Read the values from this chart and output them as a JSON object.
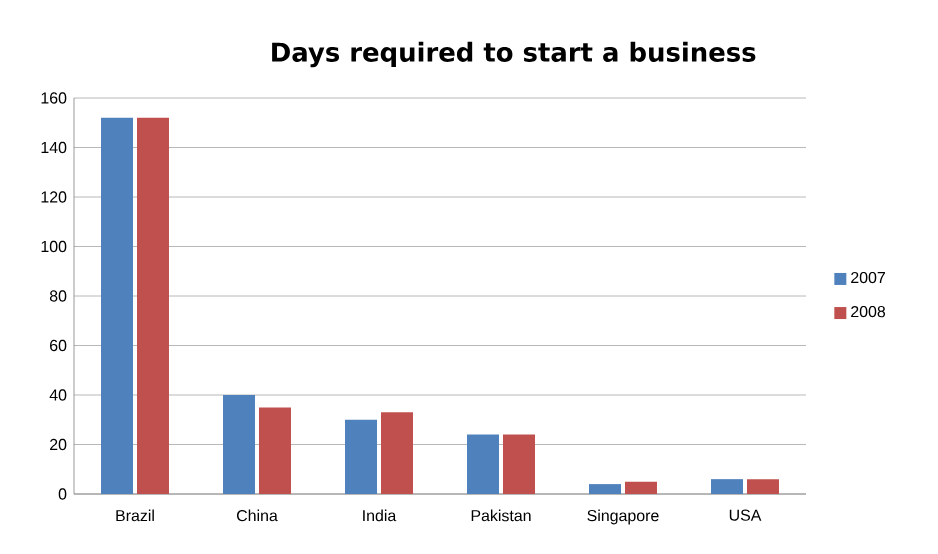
{
  "chart_data": {
    "type": "bar",
    "title": "Days required to start a business",
    "categories": [
      "Brazil",
      "China",
      "India",
      "Pakistan",
      "Singapore",
      "USA"
    ],
    "series": [
      {
        "name": "2007",
        "color": "#4f81bd",
        "values": [
          152,
          40,
          30,
          24,
          4,
          6
        ]
      },
      {
        "name": "2008",
        "color": "#c0504d",
        "values": [
          152,
          35,
          33,
          24,
          5,
          6
        ]
      }
    ],
    "ylim": [
      0,
      160
    ],
    "yticks": [
      0,
      20,
      40,
      60,
      80,
      100,
      120,
      140,
      160
    ],
    "grid": "y",
    "legend": "right"
  }
}
